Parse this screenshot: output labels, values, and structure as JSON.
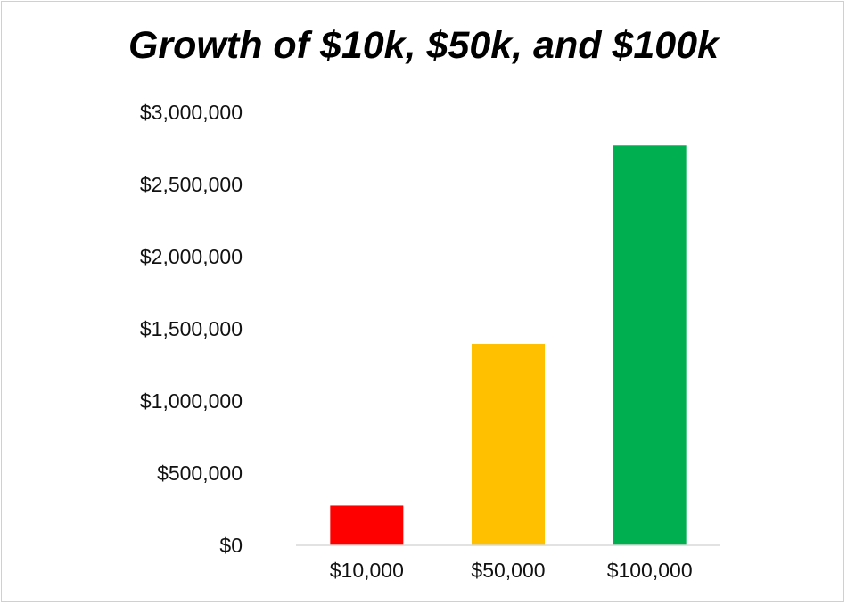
{
  "chart_data": {
    "type": "bar",
    "title": "Growth of $10k, $50k, and $100k",
    "xlabel": "",
    "ylabel": "",
    "categories": [
      "$10,000",
      "$50,000",
      "$100,000"
    ],
    "values": [
      275000,
      1395000,
      2770000
    ],
    "colors": [
      "#ff0000",
      "#ffc000",
      "#00b050"
    ],
    "ylim": [
      0,
      3000000
    ],
    "yticks": [
      0,
      500000,
      1000000,
      1500000,
      2000000,
      2500000,
      3000000
    ],
    "ytick_labels": [
      "$0",
      "$500,000",
      "$1,000,000",
      "$1,500,000",
      "$2,000,000",
      "$2,500,000",
      "$3,000,000"
    ],
    "grid": false,
    "legend": "none"
  }
}
